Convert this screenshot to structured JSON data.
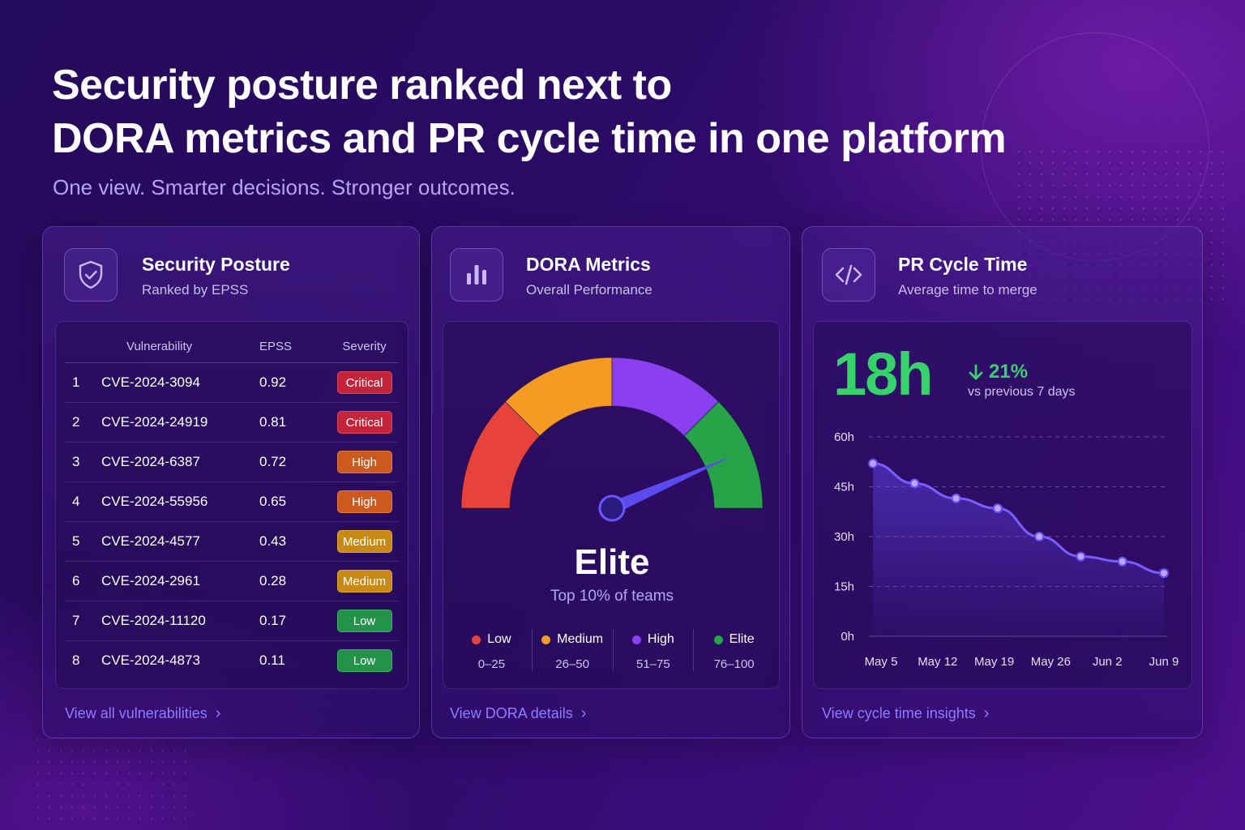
{
  "header": {
    "title_line1": "Security posture ranked next to",
    "title_line2": "DORA metrics and PR cycle time in one platform",
    "subtitle": "One view. Smarter decisions. Stronger outcomes."
  },
  "security": {
    "title": "Security Posture",
    "subtitle": "Ranked by EPSS",
    "icon": "shield-check-icon",
    "columns": [
      "Vulnerability",
      "EPSS",
      "Severity"
    ],
    "rows": [
      {
        "rank": "1",
        "cve": "CVE-2024-3094",
        "epss": "0.92",
        "severity": "Critical"
      },
      {
        "rank": "2",
        "cve": "CVE-2024-24919",
        "epss": "0.81",
        "severity": "Critical"
      },
      {
        "rank": "3",
        "cve": "CVE-2024-6387",
        "epss": "0.72",
        "severity": "High"
      },
      {
        "rank": "4",
        "cve": "CVE-2024-55956",
        "epss": "0.65",
        "severity": "High"
      },
      {
        "rank": "5",
        "cve": "CVE-2024-4577",
        "epss": "0.43",
        "severity": "Medium"
      },
      {
        "rank": "6",
        "cve": "CVE-2024-2961",
        "epss": "0.28",
        "severity": "Medium"
      },
      {
        "rank": "7",
        "cve": "CVE-2024-11120",
        "epss": "0.17",
        "severity": "Low"
      },
      {
        "rank": "8",
        "cve": "CVE-2024-4873",
        "epss": "0.11",
        "severity": "Low"
      }
    ],
    "link": "View all vulnerabilities",
    "severity_colors": {
      "Critical": "#c4243a",
      "High": "#cc5a1e",
      "Medium": "#c88a14",
      "Low": "#23934a"
    }
  },
  "dora": {
    "title": "DORA Metrics",
    "subtitle": "Overall Performance",
    "icon": "bar-chart-icon",
    "gauge": {
      "value_label": "Elite",
      "description": "Top 10% of teams",
      "needle_percent": 87
    },
    "legend": [
      {
        "name": "Low",
        "range": "0–25",
        "color": "#e8433a",
        "from": 0,
        "to": 25
      },
      {
        "name": "Medium",
        "range": "26–50",
        "color": "#f59a23",
        "from": 25,
        "to": 50
      },
      {
        "name": "High",
        "range": "51–75",
        "color": "#8a3ff0",
        "from": 50,
        "to": 75
      },
      {
        "name": "Elite",
        "range": "76–100",
        "color": "#27a448",
        "from": 75,
        "to": 100
      }
    ],
    "link": "View DORA details"
  },
  "pr": {
    "title": "PR Cycle Time",
    "subtitle": "Average time to merge",
    "icon": "code-brackets-icon",
    "value": "18h",
    "delta": "21%",
    "delta_icon": "arrow-down-icon",
    "delta_note": "vs previous 7 days",
    "accent": "#35d36a",
    "link": "View cycle time insights"
  },
  "chart_data": {
    "type": "area",
    "x": [
      "May 5",
      "May 12",
      "May 19",
      "May 26",
      "Jun 2",
      "Jun 9"
    ],
    "points": [
      {
        "x": "May 5",
        "y": 52
      },
      {
        "y": 46
      },
      {
        "y": 41.5
      },
      {
        "y": 38.5
      },
      {
        "y": 30
      },
      {
        "y": 24
      },
      {
        "y": 22.5
      },
      {
        "x": "Jun 9",
        "y": 19
      }
    ],
    "yticks": [
      "60h",
      "45h",
      "30h",
      "15h",
      "0h"
    ],
    "ylim": [
      0,
      60
    ],
    "grid": true,
    "color": "#7b5cff"
  }
}
